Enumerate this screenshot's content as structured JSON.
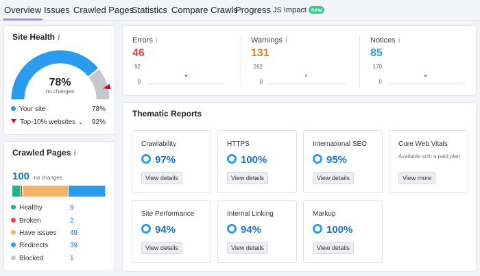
{
  "nav": {
    "items": [
      "Overview",
      "Issues",
      "Crawled Pages",
      "Statistics",
      "Compare Crawls",
      "Progress"
    ],
    "js_impact": "JS Impact",
    "new_badge": "new"
  },
  "site_health": {
    "title": "Site Health",
    "score": "78%",
    "score_sub": "no changes",
    "score_value": 78,
    "top10_value": 92,
    "legend": [
      {
        "label": "Your site",
        "value": "78%"
      },
      {
        "label": "Top-10% websites",
        "value": "92%"
      }
    ],
    "colors": {
      "site": "#2b9ced",
      "top10": "#c3112e",
      "rest": "#c6c8ce"
    }
  },
  "crawled_pages": {
    "title": "Crawled Pages",
    "total": "100",
    "total_sub": "no changes",
    "rows": [
      {
        "label": "Healthy",
        "value": "9",
        "color": "#1bb789",
        "count": 9
      },
      {
        "label": "Broken",
        "value": "2",
        "color": "#e64545",
        "count": 2
      },
      {
        "label": "Have issues",
        "value": "49",
        "color": "#f5b46a",
        "count": 49
      },
      {
        "label": "Redirects",
        "value": "39",
        "color": "#2b9ced",
        "count": 39
      },
      {
        "label": "Blocked",
        "value": "1",
        "color": "#c6c8ce",
        "count": 1
      }
    ]
  },
  "metrics": [
    {
      "label": "Errors",
      "value": "46",
      "axis_top": "92",
      "axis_bottom": "0",
      "color": "#e64545"
    },
    {
      "label": "Warnings",
      "value": "131",
      "axis_top": "262",
      "axis_bottom": "0",
      "color": "#f07a1a"
    },
    {
      "label": "Notices",
      "value": "85",
      "axis_top": "170",
      "axis_bottom": "0",
      "color": "#2b9ced"
    }
  ],
  "thematic": {
    "title": "Thematic Reports",
    "reports": [
      {
        "title": "Crawlability",
        "score": "97%",
        "button": "View details"
      },
      {
        "title": "HTTPS",
        "score": "100%",
        "button": "View details"
      },
      {
        "title": "International SEO",
        "score": "95%",
        "button": "View details"
      },
      {
        "title": "Core Web Vitals",
        "note": "Available with a paid plan",
        "button": "View more"
      },
      {
        "title": "Site Performance",
        "score": "94%",
        "button": "View details"
      },
      {
        "title": "Internal Linking",
        "score": "94%",
        "button": "View details"
      },
      {
        "title": "Markup",
        "score": "100%",
        "button": "View details"
      }
    ]
  }
}
